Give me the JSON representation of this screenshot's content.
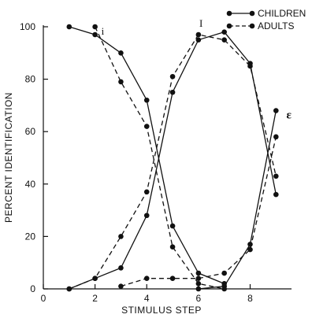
{
  "chart_data": {
    "type": "line",
    "xlabel": "STIMULUS STEP",
    "ylabel": "PERCENT IDENTIFICATION",
    "xlim": [
      0,
      9.6
    ],
    "ylim": [
      0,
      100
    ],
    "xticks": [
      0,
      2,
      4,
      6,
      8
    ],
    "yticks": [
      0,
      20,
      40,
      60,
      80,
      100
    ],
    "grid": false,
    "legend": "top-right",
    "legend_entries": [
      {
        "label": "CHILDREN",
        "style": "solid"
      },
      {
        "label": "ADULTS",
        "style": "dashed"
      }
    ],
    "curve_labels": [
      {
        "text": "i",
        "x": 2.3,
        "y": 97
      },
      {
        "text": "I",
        "x": 6.1,
        "y": 100
      },
      {
        "text": "ε",
        "x": 9.5,
        "y": 65
      }
    ],
    "series": [
      {
        "name": "CHILDREN",
        "vowel": "i",
        "style": "solid",
        "x": [
          1,
          2,
          3,
          4,
          5,
          6,
          7
        ],
        "y": [
          100,
          97,
          90,
          72,
          24,
          6,
          2
        ]
      },
      {
        "name": "CHILDREN",
        "vowel": "I",
        "style": "solid",
        "x": [
          1,
          2,
          3,
          4,
          5,
          6,
          7,
          8,
          9
        ],
        "y": [
          0,
          4,
          8,
          28,
          75,
          95,
          98,
          86,
          36
        ]
      },
      {
        "name": "CHILDREN",
        "vowel": "ε",
        "style": "solid",
        "x": [
          6,
          7,
          8,
          9
        ],
        "y": [
          0,
          1,
          17,
          68
        ]
      },
      {
        "name": "ADULTS",
        "vowel": "i",
        "style": "dashed",
        "x": [
          2,
          3,
          4,
          5,
          6,
          7
        ],
        "y": [
          100,
          79,
          62,
          16,
          2,
          0
        ]
      },
      {
        "name": "ADULTS",
        "vowel": "I",
        "style": "dashed",
        "x": [
          1,
          2,
          3,
          4,
          5,
          6,
          7,
          8,
          9
        ],
        "y": [
          0,
          4,
          20,
          37,
          81,
          97,
          95,
          85,
          43
        ]
      },
      {
        "name": "ADULTS",
        "vowel": "ε",
        "style": "dashed",
        "x": [
          3,
          4,
          5,
          6,
          7,
          8,
          9
        ],
        "y": [
          1,
          4,
          4,
          4,
          6,
          15,
          58
        ]
      }
    ]
  }
}
